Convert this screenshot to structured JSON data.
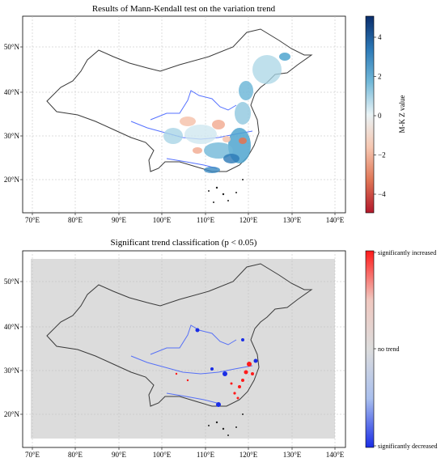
{
  "panels": [
    {
      "title": "Results of Mann-Kendall test on the variation trend",
      "colorbar": {
        "label": "M-K Z value",
        "ticks": [
          "4",
          "2",
          "0",
          "−2",
          "−4"
        ],
        "colors": [
          "#0b2d6b",
          "#2c79b7",
          "#71b8d8",
          "#e9f3f6",
          "#f6c7b1",
          "#e07656",
          "#b2182b"
        ]
      }
    },
    {
      "title": "Significant trend classification (p < 0.05)",
      "colorbar": {
        "ticks": [
          "significantly increased",
          "no trend",
          "significantly decreased"
        ],
        "colors": [
          "#ff1a1a",
          "#f0c8c0",
          "#dcdcdc",
          "#aac0ee",
          "#1a2de6"
        ]
      }
    }
  ],
  "lon_ticks": [
    "70°E",
    "80°E",
    "90°E",
    "100°E",
    "110°E",
    "120°E",
    "130°E",
    "140°E"
  ],
  "lat_ticks": [
    "50°N",
    "40°N",
    "30°N",
    "20°N"
  ]
}
